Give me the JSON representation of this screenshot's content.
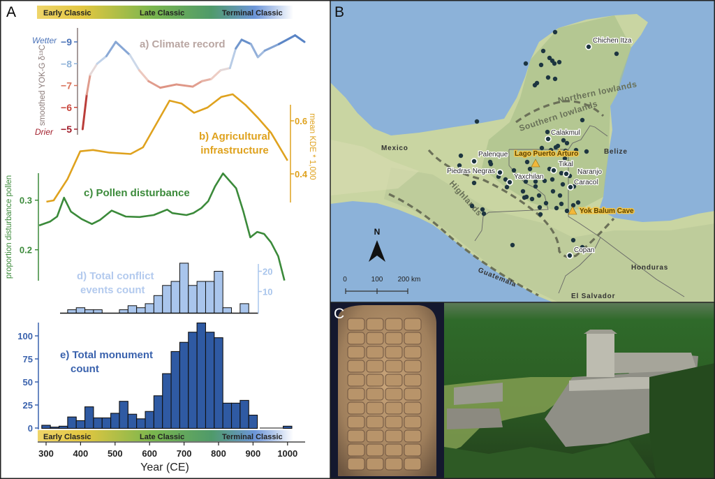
{
  "panel_labels": {
    "a": "A",
    "b": "B",
    "c": "C"
  },
  "periods": {
    "early": "Early Classic",
    "late": "Late Classic",
    "terminal": "Terminal Classic"
  },
  "colors": {
    "climate_axis": "#8a7a78",
    "agri": "#dfa21e",
    "pollen": "#3b8a3a",
    "conflict": "#a9c5ec",
    "monument": "#2f5aa3",
    "monument_text": "#3a62ad",
    "sea": "#8cb2d9",
    "land": "#c9d5a2"
  },
  "chart_data": [
    {
      "type": "line",
      "id": "climate",
      "title": "a) Climate record",
      "ylabel": "smoothed YOK-G δ¹³C",
      "ylim": [
        -9.3,
        -5
      ],
      "yticks": [
        "−9",
        "−8",
        "−7",
        "−6",
        "−5"
      ],
      "ytick_values": [
        -9,
        -8,
        -7,
        -6,
        -5
      ],
      "annotations": {
        "wet": "Wetter",
        "dry": "Drier"
      },
      "x": [
        406,
        418,
        428,
        448,
        475,
        502,
        543,
        570,
        597,
        631,
        678,
        725,
        752,
        779,
        806,
        833,
        850,
        867,
        894,
        914,
        934,
        975,
        1022,
        1049
      ],
      "values": [
        -5.0,
        -6.6,
        -7.5,
        -8.0,
        -8.35,
        -9.0,
        -8.4,
        -7.7,
        -7.2,
        -6.9,
        -7.05,
        -6.95,
        -7.2,
        -7.3,
        -7.7,
        -7.8,
        -8.7,
        -9.1,
        -8.9,
        -8.3,
        -8.6,
        -8.9,
        -9.3,
        -9.0
      ]
    },
    {
      "type": "line",
      "id": "agriculture",
      "title_line1": "b) Agricultural",
      "title_line2": "infrastructure",
      "ylabel": "mean KDE * 1,000",
      "yticks": [
        "0.4",
        "0.6"
      ],
      "ytick_values": [
        0.4,
        0.6
      ],
      "x": [
        301,
        322,
        362,
        399,
        436,
        484,
        545,
        581,
        658,
        693,
        729,
        768,
        808,
        841,
        878,
        915,
        952,
        1000
      ],
      "values": [
        0.295,
        0.3,
        0.38,
        0.485,
        0.49,
        0.48,
        0.475,
        0.5,
        0.676,
        0.665,
        0.63,
        0.65,
        0.69,
        0.7,
        0.66,
        0.61,
        0.555,
        0.45
      ]
    },
    {
      "type": "line",
      "id": "pollen",
      "title": "c) Pollen disturbance",
      "ylabel": "proportion disturbance pollen",
      "yticks": [
        "0.2",
        "0.3"
      ],
      "ytick_values": [
        0.2,
        0.3
      ],
      "x": [
        280,
        312,
        332,
        352,
        372,
        403,
        433,
        456,
        490,
        531,
        571,
        612,
        651,
        666,
        707,
        727,
        750,
        770,
        790,
        813,
        851,
        872,
        892,
        912,
        932,
        952,
        973,
        991
      ],
      "values": [
        0.249,
        0.257,
        0.267,
        0.305,
        0.277,
        0.262,
        0.252,
        0.26,
        0.279,
        0.267,
        0.266,
        0.27,
        0.281,
        0.274,
        0.27,
        0.274,
        0.284,
        0.298,
        0.328,
        0.354,
        0.324,
        0.277,
        0.225,
        0.236,
        0.232,
        0.215,
        0.187,
        0.138
      ]
    },
    {
      "type": "bar",
      "id": "conflict",
      "title_line1": "d) Total conflict",
      "title_line2": "events count",
      "yticks": [
        "10",
        "20"
      ],
      "ytick_values": [
        10,
        20
      ],
      "bin_width_years": 25,
      "x": [
        375,
        400,
        425,
        450,
        525,
        550,
        575,
        600,
        625,
        650,
        675,
        700,
        725,
        750,
        775,
        800,
        825,
        875
      ],
      "values": [
        1,
        2,
        1,
        1,
        1,
        3,
        2,
        4,
        8,
        13,
        15,
        24,
        13,
        15,
        15,
        20,
        2,
        4
      ]
    },
    {
      "type": "bar",
      "id": "monument",
      "title_line1": "e) Total monument",
      "title_line2": "count",
      "yticks": [
        "0",
        "25",
        "50",
        "75",
        "100"
      ],
      "ytick_values": [
        0,
        25,
        50,
        75,
        100
      ],
      "bin_width_years": 25,
      "x": [
        300,
        325,
        350,
        375,
        400,
        425,
        450,
        475,
        500,
        525,
        550,
        575,
        600,
        625,
        650,
        675,
        700,
        725,
        750,
        775,
        800,
        825,
        850,
        875,
        900,
        1000
      ],
      "values": [
        3,
        1,
        2,
        12,
        8,
        23,
        11,
        11,
        16,
        29,
        15,
        10,
        18,
        35,
        59,
        83,
        93,
        104,
        114,
        104,
        98,
        27,
        27,
        30,
        14,
        2
      ],
      "xlabel": "Year (CE)",
      "xticks": [
        "300",
        "400",
        "500",
        "600",
        "700",
        "800",
        "900",
        "1000"
      ],
      "xtick_values": [
        300,
        400,
        500,
        600,
        700,
        800,
        900,
        1000
      ],
      "xlim": [
        275,
        1050
      ]
    }
  ],
  "map": {
    "regions": {
      "north": "Northern lowlands",
      "south": "Southern lowlands",
      "highlands": "Highlands"
    },
    "countries": {
      "mexico": "Mexico",
      "belize": "Belize",
      "guatemala": "Guatemala",
      "honduras": "Honduras",
      "el_salvador": "El Salvador"
    },
    "sites": [
      "Chichen Itza",
      "Calakmul",
      "Palenque",
      "Piedras Negras",
      "Yaxchilan",
      "Tikal",
      "Naranjo",
      "Caracol",
      "Copan"
    ],
    "records": [
      "Lago Puerto Arturo",
      "Yok Balum Cave"
    ],
    "north_arrow": "N",
    "scale": {
      "s0": "0",
      "s1": "100",
      "s2": "200 km"
    }
  }
}
